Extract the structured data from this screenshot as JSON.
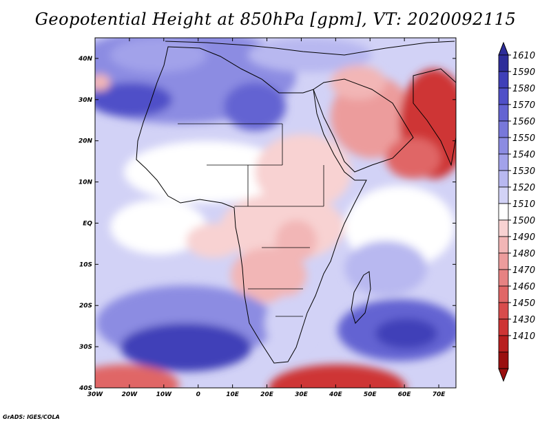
{
  "title": "Geopotential Height at 850hPa [gpm], VT: 2020092115",
  "credit": "GrADS: IGES/COLA",
  "map": {
    "variable": "Geopotential Height",
    "level": "850hPa",
    "units": "gpm",
    "valid_time": "2020092115",
    "lon_range": [
      -30,
      75
    ],
    "lat_range": [
      -40,
      45
    ],
    "lat_ticks": [
      {
        "value": 40,
        "label": "40N"
      },
      {
        "value": 30,
        "label": "30N"
      },
      {
        "value": 20,
        "label": "20N"
      },
      {
        "value": 10,
        "label": "10N"
      },
      {
        "value": 0,
        "label": "EQ"
      },
      {
        "value": -10,
        "label": "10S"
      },
      {
        "value": -20,
        "label": "20S"
      },
      {
        "value": -30,
        "label": "30S"
      },
      {
        "value": -40,
        "label": "40S"
      }
    ],
    "lon_ticks": [
      {
        "value": -30,
        "label": "30W"
      },
      {
        "value": -20,
        "label": "20W"
      },
      {
        "value": -10,
        "label": "10W"
      },
      {
        "value": 0,
        "label": "0"
      },
      {
        "value": 10,
        "label": "10E"
      },
      {
        "value": 20,
        "label": "20E"
      },
      {
        "value": 30,
        "label": "30E"
      },
      {
        "value": 40,
        "label": "40E"
      },
      {
        "value": 50,
        "label": "50E"
      },
      {
        "value": 60,
        "label": "60E"
      },
      {
        "value": 70,
        "label": "70E"
      }
    ]
  },
  "colorbar": {
    "levels": [
      "1610",
      "1590",
      "1580",
      "1570",
      "1560",
      "1550",
      "1540",
      "1530",
      "1520",
      "1510",
      "1500",
      "1490",
      "1480",
      "1470",
      "1460",
      "1450",
      "1430",
      "1410"
    ],
    "colors": [
      "#2e2d9a",
      "#3f3fb8",
      "#5050c8",
      "#6464d2",
      "#7878da",
      "#8c8ce2",
      "#a2a2ea",
      "#b8b8f0",
      "#d2d2f6",
      "#ffffff",
      "#f8d2d2",
      "#f2b6b6",
      "#ec9c9c",
      "#e68282",
      "#e06666",
      "#d84c4c",
      "#ce3434",
      "#b81e1e",
      "#9a0f0f"
    ]
  }
}
